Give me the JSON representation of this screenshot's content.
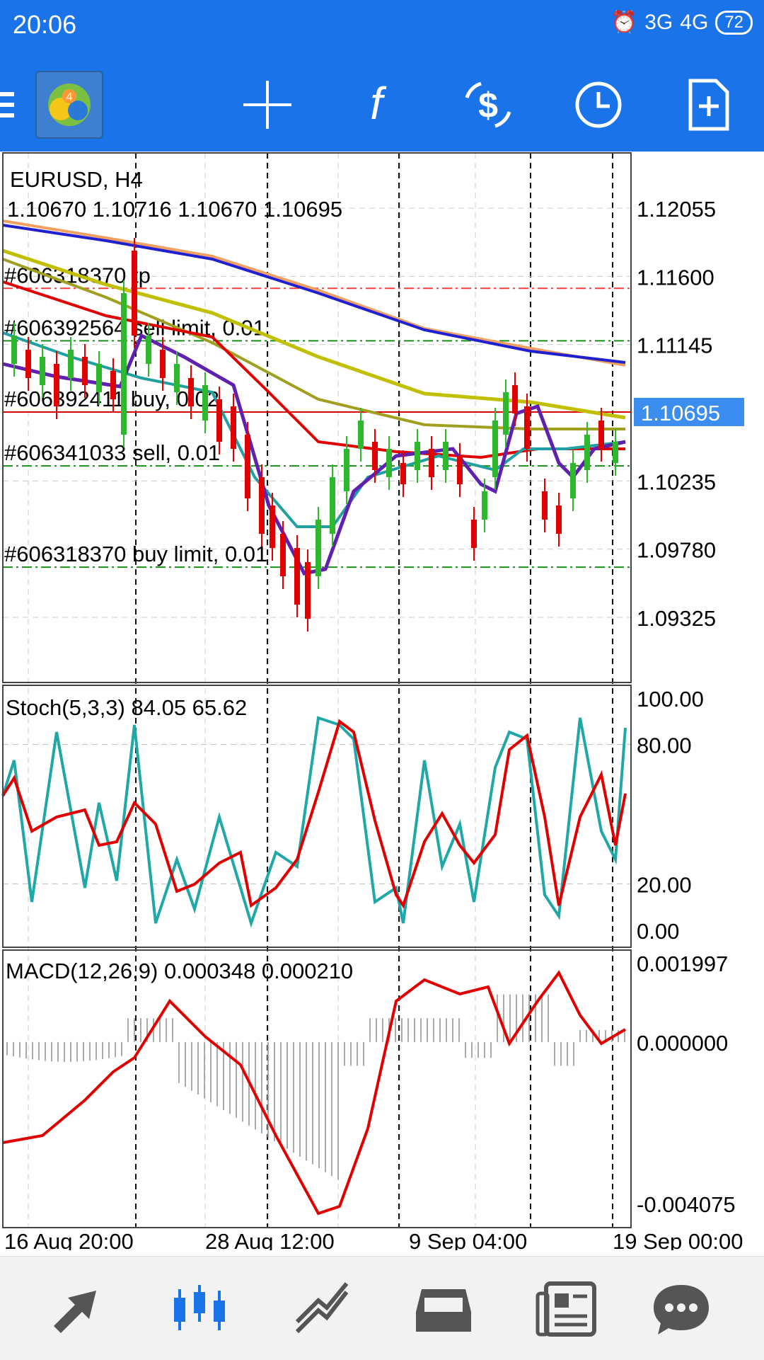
{
  "status": {
    "time": "20:06",
    "net1": "3G",
    "net2": "4G",
    "battery": "72"
  },
  "toolbar": {
    "menu": "menu-icon",
    "crosshair": "crosshair-icon",
    "indicators": "function-icon",
    "trade": "new-order-icon",
    "period": "clock-icon",
    "template": "add-document-icon"
  },
  "main": {
    "symbol": "EURUSD, H4",
    "ohlc": "1.10670 1.10716 1.10670 1.10695",
    "current_price": "1.10695",
    "orders": [
      {
        "label": "#606318370 tp",
        "price": 1.1152,
        "color": "#ff3b3b"
      },
      {
        "label": "#606392564 sell limit, 0.01",
        "price": 1.1117,
        "color": "#1a8f1a"
      },
      {
        "label": "#606392411 buy, 0.02",
        "price": 1.10695,
        "color": "#1a1aff"
      },
      {
        "label": "#606341033 sell, 0.01",
        "price": 1.10335,
        "color": "#1a8f1a"
      },
      {
        "label": "#606318370 buy limit, 0.01",
        "price": 1.0966,
        "color": "#1a8f1a"
      }
    ],
    "price_axis": [
      "1.12055",
      "1.11600",
      "1.11145",
      "1.10235",
      "1.09780",
      "1.09325"
    ]
  },
  "stoch": {
    "label": "Stoch(5,3,3) 84.05 65.62",
    "axis": [
      "100.00",
      "80.00",
      "20.00",
      "0.00"
    ]
  },
  "macd": {
    "label": "MACD(12,26,9) 0.000348 0.000210",
    "axis": [
      "0.001997",
      "0.000000",
      "-0.004075"
    ]
  },
  "time_axis": [
    "16 Aug 20:00",
    "28 Aug 12:00",
    "9 Sep 04:00",
    "19 Sep 00:00"
  ],
  "nav": [
    "trade-icon",
    "chart-icon",
    "history-icon",
    "inbox-icon",
    "news-icon",
    "chat-icon"
  ],
  "colors": {
    "accent": "#1a73e8",
    "up": "#2eb82e",
    "down": "#e00000",
    "stoch_main": "#20a8a8",
    "stoch_signal": "#e00000",
    "macd_signal": "#e00000"
  }
}
